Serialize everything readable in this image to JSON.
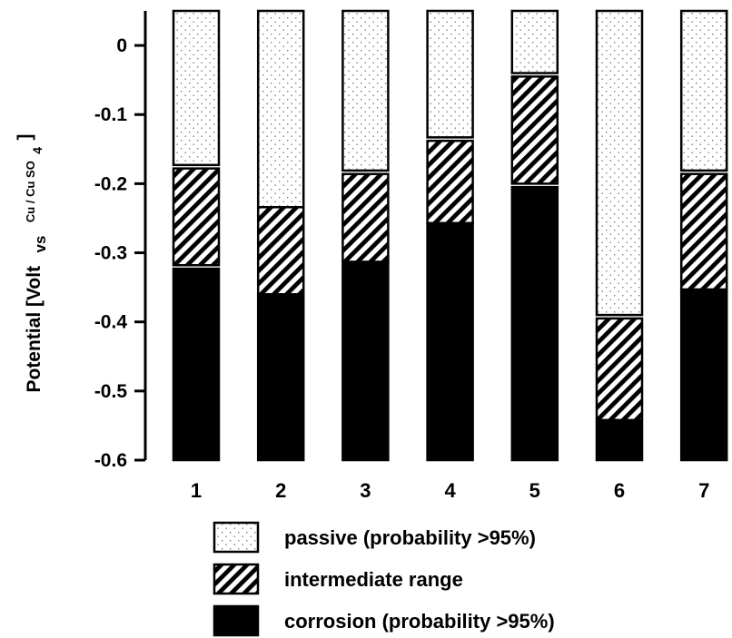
{
  "chart_data": {
    "type": "bar",
    "stacked": true,
    "categories": [
      "1",
      "2",
      "3",
      "4",
      "5",
      "6",
      "7"
    ],
    "ylim": [
      -0.6,
      0.05
    ],
    "yticks": [
      0,
      -0.1,
      -0.2,
      -0.3,
      -0.4,
      -0.5,
      -0.6
    ],
    "ytick_labels": [
      "0",
      "-0.1",
      "-0.2",
      "-0.3",
      "-0.4",
      "-0.5",
      "-0.6"
    ],
    "ylabel": {
      "main": "Potential [Volt",
      "vs": "vs",
      "ref": "Cu / Cu SO",
      "subscript": "4",
      "close": "]"
    },
    "grid": false,
    "legend_position": "bottom",
    "series": [
      {
        "name": "corrosion (probability >95%)",
        "key": "corrosion",
        "ranges": [
          [
            -0.6,
            -0.323
          ],
          [
            -0.6,
            -0.36
          ],
          [
            -0.6,
            -0.313
          ],
          [
            -0.6,
            -0.257
          ],
          [
            -0.6,
            -0.205
          ],
          [
            -0.6,
            -0.545
          ],
          [
            -0.6,
            -0.353
          ]
        ]
      },
      {
        "name": "intermediate range",
        "key": "intermediate",
        "ranges": [
          [
            -0.318,
            -0.178
          ],
          [
            -0.36,
            -0.234
          ],
          [
            -0.313,
            -0.186
          ],
          [
            -0.257,
            -0.138
          ],
          [
            -0.2,
            -0.045
          ],
          [
            -0.542,
            -0.395
          ],
          [
            -0.353,
            -0.186
          ]
        ]
      },
      {
        "name": "passive (probability >95%)",
        "key": "passive",
        "ranges": [
          [
            -0.173,
            0.05
          ],
          [
            -0.234,
            0.05
          ],
          [
            -0.181,
            0.05
          ],
          [
            -0.133,
            0.05
          ],
          [
            -0.04,
            0.05
          ],
          [
            -0.39,
            0.05
          ],
          [
            -0.181,
            0.05
          ]
        ]
      }
    ],
    "legend": [
      {
        "key": "passive",
        "label": "passive (probability >95%)"
      },
      {
        "key": "intermediate",
        "label": "intermediate range"
      },
      {
        "key": "corrosion",
        "label": "corrosion (probability >95%)"
      }
    ]
  }
}
